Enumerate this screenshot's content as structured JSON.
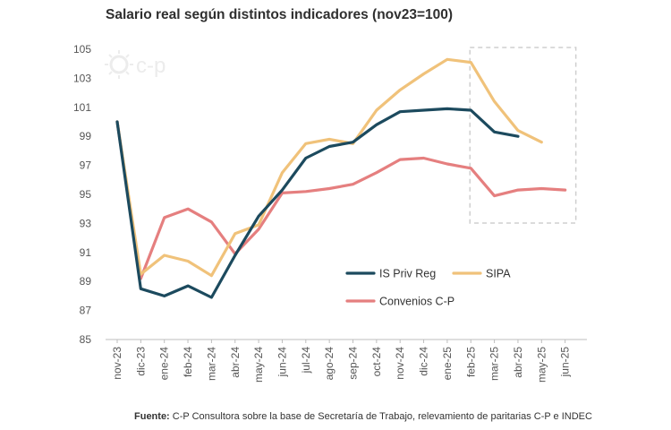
{
  "title": "Salario real según distintos indicadores (nov23=100)",
  "source_label": "Fuente:",
  "source_text": " C-P Consultora sobre la base de Secretaría de Trabajo, relevamiento de paritarias C-P e INDEC",
  "logo_text": "c-p",
  "chart_data": {
    "type": "line",
    "title": "Salario real según distintos indicadores (nov23=100)",
    "categories": [
      "nov-23",
      "dic-23",
      "ene-24",
      "feb-24",
      "mar-24",
      "abr-24",
      "may-24",
      "jun-24",
      "jul-24",
      "ago-24",
      "sep-24",
      "oct-24",
      "nov-24",
      "dic-24",
      "ene-25",
      "feb-25",
      "mar-25",
      "abr-25",
      "may-25",
      "jun-25"
    ],
    "ylim": [
      85,
      105
    ],
    "yticks": [
      85,
      87,
      89,
      91,
      93,
      95,
      97,
      99,
      101,
      103,
      105
    ],
    "grid": false,
    "legend_position": "bottom-right inside plot",
    "highlight_box": "dashed box from feb-25 to jun-25",
    "series": [
      {
        "name": "IS Priv Reg",
        "color": "#1c4a5e",
        "values": [
          100,
          88.5,
          88.0,
          88.7,
          87.9,
          90.8,
          93.5,
          95.3,
          97.5,
          98.3,
          98.6,
          99.8,
          100.7,
          100.8,
          100.9,
          100.8,
          99.3,
          99.0,
          null,
          null
        ]
      },
      {
        "name": "SIPA",
        "color": "#f0c27a",
        "values": [
          100,
          89.5,
          90.8,
          90.4,
          89.4,
          92.3,
          92.9,
          96.5,
          98.5,
          98.8,
          98.5,
          100.8,
          102.2,
          103.3,
          104.3,
          104.1,
          101.4,
          99.4,
          98.6,
          null
        ]
      },
      {
        "name": "Convenios C-P",
        "color": "#e57f7f",
        "values": [
          100,
          89.2,
          93.4,
          94.0,
          93.1,
          90.9,
          92.6,
          95.1,
          95.2,
          95.4,
          95.7,
          96.5,
          97.4,
          97.5,
          97.1,
          96.8,
          94.9,
          95.3,
          95.4,
          95.3
        ]
      }
    ]
  }
}
